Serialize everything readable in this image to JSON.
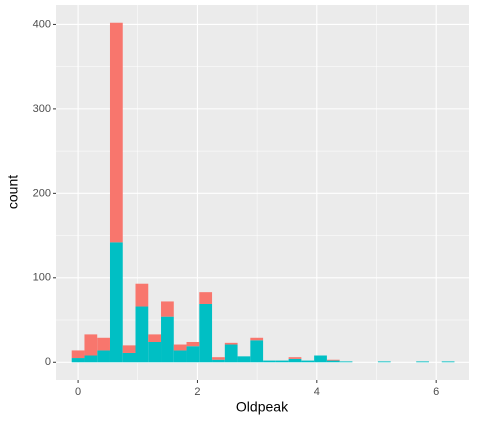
{
  "chart_data": {
    "type": "histogram",
    "x_label": "Oldpeak",
    "y_label": "count",
    "bins": [
      -0.1069,
      0.1069,
      0.3207,
      0.5345,
      0.7483,
      0.9621,
      1.1759,
      1.3897,
      1.6034,
      1.8172,
      2.031,
      2.2448,
      2.4586,
      2.6724,
      2.8862,
      3.1,
      3.3138,
      3.5276,
      3.7414,
      3.9552,
      4.169,
      4.3828,
      4.5966,
      4.8103,
      5.0241,
      5.2379,
      5.4517,
      5.6655,
      5.8793,
      6.0931,
      6.3069
    ],
    "series": [
      {
        "color": "#00BFC4",
        "values": [
          5,
          8,
          14,
          142,
          11,
          66,
          24,
          54,
          14,
          19,
          69,
          3,
          21,
          7,
          26,
          2,
          2,
          4,
          2,
          8,
          2,
          1,
          0,
          0,
          1,
          0,
          0,
          1,
          0,
          1
        ]
      },
      {
        "color": "#F8766D",
        "values": [
          9,
          25,
          15,
          260,
          9,
          27,
          9,
          18,
          7,
          5,
          14,
          3,
          2,
          0,
          3,
          0,
          0,
          2,
          0,
          0,
          1,
          0,
          0,
          0,
          0,
          0,
          0,
          0,
          0,
          0
        ]
      }
    ],
    "stacked": true,
    "xlim": [
      -0.37,
      6.55
    ],
    "xticks": [
      0,
      2,
      4,
      6
    ],
    "xminor": [
      1,
      3,
      5
    ],
    "ylim": [
      -21,
      423
    ],
    "yticks": [
      0,
      100,
      200,
      300,
      400
    ],
    "yminor": [
      50,
      150,
      250,
      350
    ],
    "grid": true
  }
}
